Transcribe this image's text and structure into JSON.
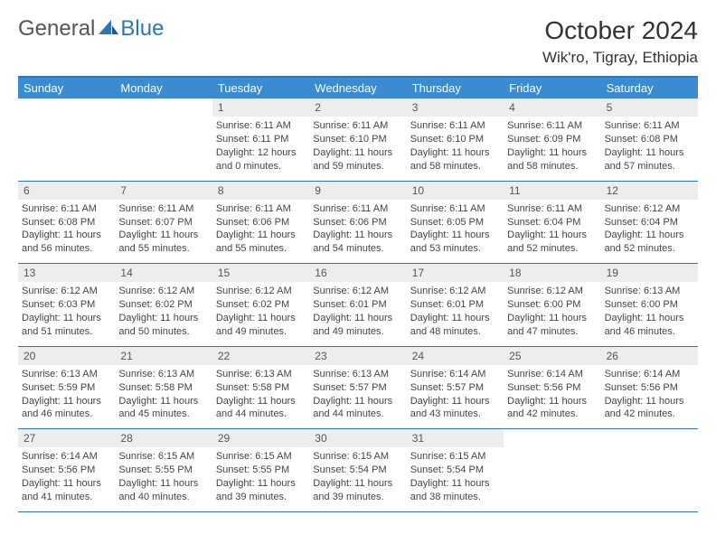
{
  "brand": {
    "part1": "General",
    "part2": "Blue",
    "accent_color": "#2e75b6"
  },
  "header": {
    "month_title": "October 2024",
    "location": "Wik'ro, Tigray, Ethiopia"
  },
  "day_names": [
    "Sunday",
    "Monday",
    "Tuesday",
    "Wednesday",
    "Thursday",
    "Friday",
    "Saturday"
  ],
  "colors": {
    "header_bar": "#3b8bd0",
    "border": "#2e75b6",
    "daynum_bg": "#ededed",
    "text": "#444444"
  },
  "weeks": [
    [
      null,
      null,
      {
        "n": "1",
        "sr": "Sunrise: 6:11 AM",
        "ss": "Sunset: 6:11 PM",
        "d1": "Daylight: 12 hours",
        "d2": "and 0 minutes."
      },
      {
        "n": "2",
        "sr": "Sunrise: 6:11 AM",
        "ss": "Sunset: 6:10 PM",
        "d1": "Daylight: 11 hours",
        "d2": "and 59 minutes."
      },
      {
        "n": "3",
        "sr": "Sunrise: 6:11 AM",
        "ss": "Sunset: 6:10 PM",
        "d1": "Daylight: 11 hours",
        "d2": "and 58 minutes."
      },
      {
        "n": "4",
        "sr": "Sunrise: 6:11 AM",
        "ss": "Sunset: 6:09 PM",
        "d1": "Daylight: 11 hours",
        "d2": "and 58 minutes."
      },
      {
        "n": "5",
        "sr": "Sunrise: 6:11 AM",
        "ss": "Sunset: 6:08 PM",
        "d1": "Daylight: 11 hours",
        "d2": "and 57 minutes."
      }
    ],
    [
      {
        "n": "6",
        "sr": "Sunrise: 6:11 AM",
        "ss": "Sunset: 6:08 PM",
        "d1": "Daylight: 11 hours",
        "d2": "and 56 minutes."
      },
      {
        "n": "7",
        "sr": "Sunrise: 6:11 AM",
        "ss": "Sunset: 6:07 PM",
        "d1": "Daylight: 11 hours",
        "d2": "and 55 minutes."
      },
      {
        "n": "8",
        "sr": "Sunrise: 6:11 AM",
        "ss": "Sunset: 6:06 PM",
        "d1": "Daylight: 11 hours",
        "d2": "and 55 minutes."
      },
      {
        "n": "9",
        "sr": "Sunrise: 6:11 AM",
        "ss": "Sunset: 6:06 PM",
        "d1": "Daylight: 11 hours",
        "d2": "and 54 minutes."
      },
      {
        "n": "10",
        "sr": "Sunrise: 6:11 AM",
        "ss": "Sunset: 6:05 PM",
        "d1": "Daylight: 11 hours",
        "d2": "and 53 minutes."
      },
      {
        "n": "11",
        "sr": "Sunrise: 6:11 AM",
        "ss": "Sunset: 6:04 PM",
        "d1": "Daylight: 11 hours",
        "d2": "and 52 minutes."
      },
      {
        "n": "12",
        "sr": "Sunrise: 6:12 AM",
        "ss": "Sunset: 6:04 PM",
        "d1": "Daylight: 11 hours",
        "d2": "and 52 minutes."
      }
    ],
    [
      {
        "n": "13",
        "sr": "Sunrise: 6:12 AM",
        "ss": "Sunset: 6:03 PM",
        "d1": "Daylight: 11 hours",
        "d2": "and 51 minutes."
      },
      {
        "n": "14",
        "sr": "Sunrise: 6:12 AM",
        "ss": "Sunset: 6:02 PM",
        "d1": "Daylight: 11 hours",
        "d2": "and 50 minutes."
      },
      {
        "n": "15",
        "sr": "Sunrise: 6:12 AM",
        "ss": "Sunset: 6:02 PM",
        "d1": "Daylight: 11 hours",
        "d2": "and 49 minutes."
      },
      {
        "n": "16",
        "sr": "Sunrise: 6:12 AM",
        "ss": "Sunset: 6:01 PM",
        "d1": "Daylight: 11 hours",
        "d2": "and 49 minutes."
      },
      {
        "n": "17",
        "sr": "Sunrise: 6:12 AM",
        "ss": "Sunset: 6:01 PM",
        "d1": "Daylight: 11 hours",
        "d2": "and 48 minutes."
      },
      {
        "n": "18",
        "sr": "Sunrise: 6:12 AM",
        "ss": "Sunset: 6:00 PM",
        "d1": "Daylight: 11 hours",
        "d2": "and 47 minutes."
      },
      {
        "n": "19",
        "sr": "Sunrise: 6:13 AM",
        "ss": "Sunset: 6:00 PM",
        "d1": "Daylight: 11 hours",
        "d2": "and 46 minutes."
      }
    ],
    [
      {
        "n": "20",
        "sr": "Sunrise: 6:13 AM",
        "ss": "Sunset: 5:59 PM",
        "d1": "Daylight: 11 hours",
        "d2": "and 46 minutes."
      },
      {
        "n": "21",
        "sr": "Sunrise: 6:13 AM",
        "ss": "Sunset: 5:58 PM",
        "d1": "Daylight: 11 hours",
        "d2": "and 45 minutes."
      },
      {
        "n": "22",
        "sr": "Sunrise: 6:13 AM",
        "ss": "Sunset: 5:58 PM",
        "d1": "Daylight: 11 hours",
        "d2": "and 44 minutes."
      },
      {
        "n": "23",
        "sr": "Sunrise: 6:13 AM",
        "ss": "Sunset: 5:57 PM",
        "d1": "Daylight: 11 hours",
        "d2": "and 44 minutes."
      },
      {
        "n": "24",
        "sr": "Sunrise: 6:14 AM",
        "ss": "Sunset: 5:57 PM",
        "d1": "Daylight: 11 hours",
        "d2": "and 43 minutes."
      },
      {
        "n": "25",
        "sr": "Sunrise: 6:14 AM",
        "ss": "Sunset: 5:56 PM",
        "d1": "Daylight: 11 hours",
        "d2": "and 42 minutes."
      },
      {
        "n": "26",
        "sr": "Sunrise: 6:14 AM",
        "ss": "Sunset: 5:56 PM",
        "d1": "Daylight: 11 hours",
        "d2": "and 42 minutes."
      }
    ],
    [
      {
        "n": "27",
        "sr": "Sunrise: 6:14 AM",
        "ss": "Sunset: 5:56 PM",
        "d1": "Daylight: 11 hours",
        "d2": "and 41 minutes."
      },
      {
        "n": "28",
        "sr": "Sunrise: 6:15 AM",
        "ss": "Sunset: 5:55 PM",
        "d1": "Daylight: 11 hours",
        "d2": "and 40 minutes."
      },
      {
        "n": "29",
        "sr": "Sunrise: 6:15 AM",
        "ss": "Sunset: 5:55 PM",
        "d1": "Daylight: 11 hours",
        "d2": "and 39 minutes."
      },
      {
        "n": "30",
        "sr": "Sunrise: 6:15 AM",
        "ss": "Sunset: 5:54 PM",
        "d1": "Daylight: 11 hours",
        "d2": "and 39 minutes."
      },
      {
        "n": "31",
        "sr": "Sunrise: 6:15 AM",
        "ss": "Sunset: 5:54 PM",
        "d1": "Daylight: 11 hours",
        "d2": "and 38 minutes."
      },
      null,
      null
    ]
  ]
}
